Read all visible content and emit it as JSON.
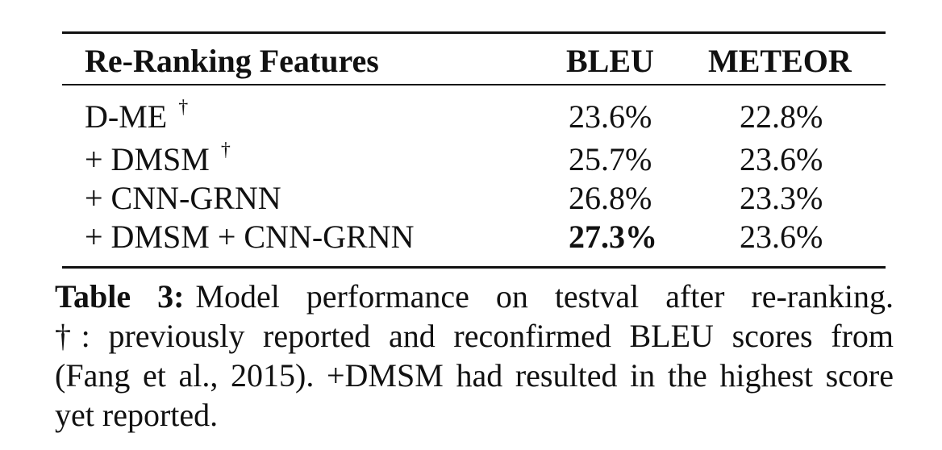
{
  "table": {
    "headers": {
      "features": "Re-Ranking Features",
      "bleu": "BLEU",
      "meteor": "METEOR"
    },
    "rows": [
      {
        "feature": "D-ME",
        "dagger": "†",
        "bleu": "23.6%",
        "meteor": "22.8%",
        "bleu_bold": false
      },
      {
        "feature": "+ DMSM",
        "dagger": "†",
        "bleu": "25.7%",
        "meteor": "23.6%",
        "bleu_bold": false
      },
      {
        "feature": "+ CNN-GRNN",
        "dagger": "",
        "bleu": "26.8%",
        "meteor": "23.3%",
        "bleu_bold": false
      },
      {
        "feature": "+ DMSM + CNN-GRNN",
        "dagger": "",
        "bleu": "27.3%",
        "meteor": "23.6%",
        "bleu_bold": true
      }
    ]
  },
  "caption": {
    "label": "Table 3:",
    "lines": [
      "Model performance on testval after re-ranking.",
      "†: previously reported and reconfirmed BLEU scores from",
      "(Fang et al., 2015). +DMSM had resulted in the highest score",
      "yet reported."
    ]
  }
}
